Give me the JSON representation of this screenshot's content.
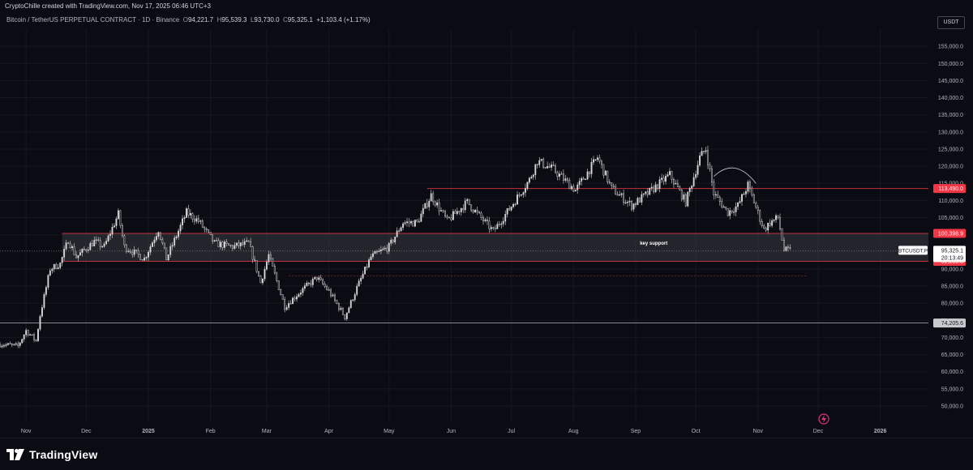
{
  "header": {
    "credit": "CryptoChille created with TradingView.com, Nov 17, 2025 06:46 UTC+3"
  },
  "legend": {
    "symbol": "Bitcoin / TetherUS PERPETUAL CONTRACT · 1D · Binance",
    "open_label": "O",
    "open": "94,221.7",
    "high_label": "H",
    "high": "95,539.3",
    "low_label": "L",
    "low": "93,730.0",
    "close_label": "C",
    "close": "95,325.1",
    "change": "+1,103.4 (+1.17%)"
  },
  "currency": "USDT",
  "footer": {
    "brand": "TradingView"
  },
  "colors": {
    "background": "#0b0c13",
    "candle": "#d8d8d8",
    "resistance_red": "#c2303a",
    "label_red": "#f23645",
    "support_zone_fill": "#3a3b42",
    "grid": "#16181f"
  },
  "chart_data": {
    "type": "candlestick",
    "title": "",
    "xlabel": "",
    "ylabel": "",
    "ylim": [
      45500,
      160000
    ],
    "x_range": [
      "2024-10-19",
      "2026-01-25"
    ],
    "y_ticks": [
      50000,
      55000,
      60000,
      65000,
      70000,
      75000,
      80000,
      85000,
      90000,
      95000,
      100000,
      105000,
      110000,
      115000,
      120000,
      125000,
      130000,
      135000,
      140000,
      145000,
      150000,
      155000
    ],
    "y_tick_labels": [
      "50,000.0",
      "55,000.0",
      "60,000.0",
      "65,000.0",
      "70,000.0",
      "75,000.0",
      "80,000.0",
      "85,000.0",
      "90,000.0",
      "95,000.0",
      "100,000.0",
      "105,000.0",
      "110,000.0",
      "115,000.0",
      "120,000.0",
      "125,000.0",
      "130,000.0",
      "135,000.0",
      "140,000.0",
      "145,000.0",
      "150,000.0",
      "155,000.0"
    ],
    "x_ticks": [
      {
        "date": "2024-11-01",
        "label": "Nov"
      },
      {
        "date": "2024-12-01",
        "label": "Dec"
      },
      {
        "date": "2025-01-01",
        "label": "2025"
      },
      {
        "date": "2025-02-01",
        "label": "Feb"
      },
      {
        "date": "2025-03-01",
        "label": "Mar"
      },
      {
        "date": "2025-04-01",
        "label": "Apr"
      },
      {
        "date": "2025-05-01",
        "label": "May"
      },
      {
        "date": "2025-06-01",
        "label": "Jun"
      },
      {
        "date": "2025-07-01",
        "label": "Jul"
      },
      {
        "date": "2025-08-01",
        "label": "Aug"
      },
      {
        "date": "2025-09-01",
        "label": "Sep"
      },
      {
        "date": "2025-10-01",
        "label": "Oct"
      },
      {
        "date": "2025-11-01",
        "label": "Nov"
      },
      {
        "date": "2025-12-01",
        "label": "Dec"
      },
      {
        "date": "2026-01-01",
        "label": "2026"
      }
    ],
    "price_path": [
      [
        "2024-10-19",
        68000
      ],
      [
        "2024-10-28",
        67500
      ],
      [
        "2024-11-01",
        72000
      ],
      [
        "2024-11-06",
        69000
      ],
      [
        "2024-11-08",
        76500
      ],
      [
        "2024-11-13",
        90000
      ],
      [
        "2024-11-18",
        91500
      ],
      [
        "2024-11-22",
        98500
      ],
      [
        "2024-11-26",
        93500
      ],
      [
        "2024-12-05",
        98000
      ],
      [
        "2024-12-10",
        96500
      ],
      [
        "2024-12-17",
        106000
      ],
      [
        "2024-12-20",
        96500
      ],
      [
        "2024-12-30",
        93000
      ],
      [
        "2025-01-06",
        101500
      ],
      [
        "2025-01-10",
        93000
      ],
      [
        "2025-01-20",
        106500
      ],
      [
        "2025-01-26",
        104000
      ],
      [
        "2025-02-03",
        97500
      ],
      [
        "2025-02-12",
        96500
      ],
      [
        "2025-02-20",
        97500
      ],
      [
        "2025-02-26",
        86000
      ],
      [
        "2025-03-02",
        94000
      ],
      [
        "2025-03-10",
        79000
      ],
      [
        "2025-03-18",
        83500
      ],
      [
        "2025-03-26",
        87500
      ],
      [
        "2025-04-01",
        83500
      ],
      [
        "2025-04-09",
        76000
      ],
      [
        "2025-04-15",
        84500
      ],
      [
        "2025-04-22",
        93500
      ],
      [
        "2025-05-01",
        96500
      ],
      [
        "2025-05-08",
        103500
      ],
      [
        "2025-05-15",
        103500
      ],
      [
        "2025-05-22",
        111500
      ],
      [
        "2025-05-30",
        104000
      ],
      [
        "2025-06-09",
        109500
      ],
      [
        "2025-06-15",
        105500
      ],
      [
        "2025-06-22",
        101000
      ],
      [
        "2025-06-30",
        107500
      ],
      [
        "2025-07-10",
        116000
      ],
      [
        "2025-07-14",
        121500
      ],
      [
        "2025-07-22",
        119000
      ],
      [
        "2025-08-02",
        113000
      ],
      [
        "2025-08-13",
        122500
      ],
      [
        "2025-08-20",
        113500
      ],
      [
        "2025-08-30",
        108500
      ],
      [
        "2025-09-08",
        112500
      ],
      [
        "2025-09-18",
        117500
      ],
      [
        "2025-09-26",
        109500
      ],
      [
        "2025-10-03",
        122500
      ],
      [
        "2025-10-06",
        125000
      ],
      [
        "2025-10-10",
        112000
      ],
      [
        "2025-10-17",
        106500
      ],
      [
        "2025-10-22",
        108500
      ],
      [
        "2025-10-27",
        114500
      ],
      [
        "2025-11-04",
        101500
      ],
      [
        "2025-11-07",
        103500
      ],
      [
        "2025-11-11",
        105000
      ],
      [
        "2025-11-14",
        95500
      ],
      [
        "2025-11-17",
        95325
      ]
    ],
    "last_date": "2025-11-17",
    "levels": [
      {
        "name": "resistance",
        "value": 113490.0,
        "label": "113,490.0",
        "start": "2025-05-20",
        "style": "solid-red"
      },
      {
        "name": "support-top",
        "value": 100398.9,
        "label": "100,398.9",
        "start": "2024-11-19",
        "style": "zone-top"
      },
      {
        "name": "support-bottom",
        "value": 92236.8,
        "label": "92,236.8",
        "start": "2024-11-19",
        "style": "zone-bottom"
      },
      {
        "name": "lower-dashed",
        "value": 88000,
        "start": "2025-03-12",
        "end": "2025-11-25",
        "style": "dashed-red"
      },
      {
        "name": "horizontal",
        "value": 74205.6,
        "label": "74,205.6",
        "start": "2024-10-19",
        "style": "solid-gray"
      }
    ],
    "zone": {
      "top": 100398.9,
      "bottom": 92236.8,
      "start": "2024-11-19",
      "label": "key support"
    },
    "last_price": {
      "symbol": "BTCUSDT.P",
      "value": "95,325.1",
      "countdown": "20:13:49",
      "raw": 95325.1
    },
    "annotations": [
      {
        "type": "arc",
        "from": [
          "2025-10-10",
          117000
        ],
        "to": [
          "2025-10-31",
          115000
        ],
        "peak": 120500
      }
    ]
  }
}
